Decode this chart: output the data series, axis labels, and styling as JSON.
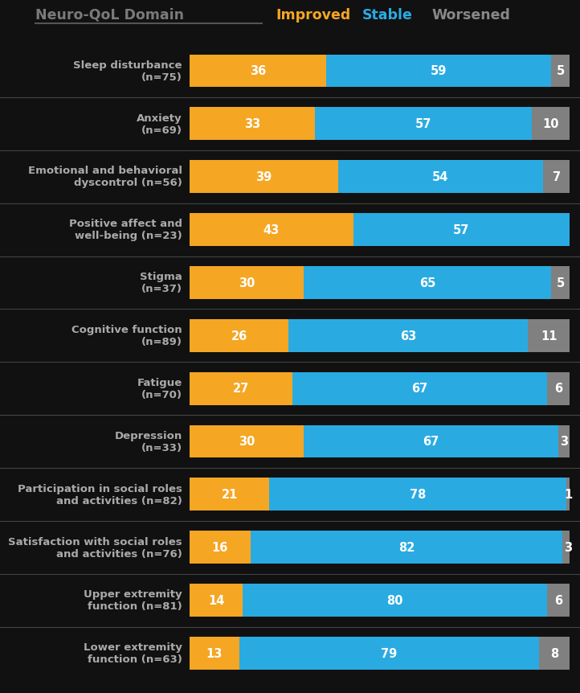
{
  "background_color": "#111111",
  "title_text": "Neuro-QoL Domain",
  "title_color": "#7a7a7a",
  "improved_color": "#f5a623",
  "stable_color": "#29abe2",
  "worsened_color": "#808080",
  "legend_improved": "Improved",
  "legend_stable": "Stable",
  "legend_worsened": "Worsened",
  "categories": [
    "Sleep disturbance\n(n=75)",
    "Anxiety\n(n=69)",
    "Emotional and behavioral\ndyscontrol (n=56)",
    "Positive affect and\nwell-being (n=23)",
    "Stigma\n(n=37)",
    "Cognitive function\n(n=89)",
    "Fatigue\n(n=70)",
    "Depression\n(n=33)",
    "Participation in social roles\nand activities (n=82)",
    "Satisfaction with social roles\nand activities (n=76)",
    "Upper extremity\nfunction (n=81)",
    "Lower extremity\nfunction (n=63)"
  ],
  "improved": [
    36,
    33,
    39,
    43,
    30,
    26,
    27,
    30,
    21,
    16,
    14,
    13
  ],
  "stable": [
    59,
    57,
    54,
    57,
    65,
    63,
    67,
    67,
    78,
    82,
    80,
    79
  ],
  "worsened": [
    5,
    10,
    7,
    0,
    5,
    11,
    6,
    3,
    1,
    3,
    6,
    8
  ],
  "label_fontsize": 10.5,
  "cat_fontsize": 9.5,
  "header_fontsize": 12.5,
  "bar_height": 0.62
}
